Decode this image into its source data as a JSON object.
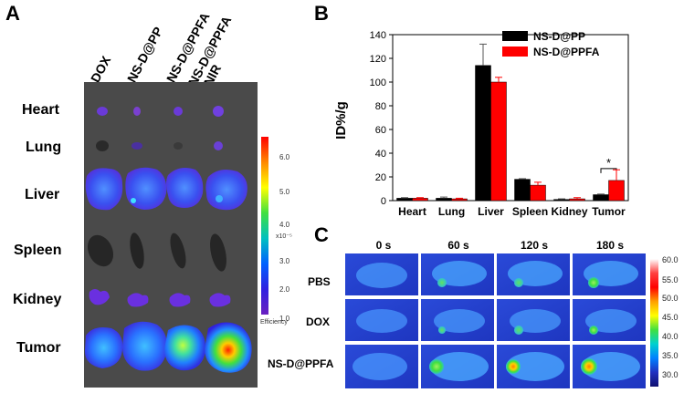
{
  "panel_a": {
    "label": "A",
    "columns": [
      "DOX",
      "NS-D@PP",
      "NS-D@PPFA",
      "NS-D@PPFA",
      "+NIR"
    ],
    "organs": [
      "Heart",
      "Lung",
      "Liver",
      "Spleen",
      "Kidney",
      "Tumor"
    ],
    "colorbar": {
      "ticks": [
        "6.0",
        "5.0",
        "4.0",
        "3.0",
        "2.0",
        "1.0"
      ],
      "exponent": "x10⁻⁵",
      "caption": "Efficiency"
    }
  },
  "panel_b": {
    "label": "B"
  },
  "panel_c": {
    "label": "C",
    "times": [
      "0 s",
      "60 s",
      "120 s",
      "180 s"
    ],
    "rows": [
      "PBS",
      "DOX",
      "NS-D@PPFA"
    ],
    "scale_ticks": [
      "60.0",
      "55.0",
      "50.0",
      "45.0",
      "40.0",
      "35.0",
      "30.0"
    ]
  },
  "chart_data": {
    "type": "bar",
    "ylabel": "ID%/g",
    "ylim": [
      0,
      140
    ],
    "yticks": [
      "0",
      "20",
      "40",
      "60",
      "80",
      "100",
      "120",
      "140"
    ],
    "categories": [
      "Heart",
      "Lung",
      "Liver",
      "Spleen",
      "Kidney",
      "Tumor"
    ],
    "series": [
      {
        "name": "NS-D@PP",
        "color": "#000000",
        "values": [
          2,
          2,
          114,
          18,
          1,
          5
        ],
        "errors": [
          0.5,
          1,
          18,
          0.5,
          0.5,
          0.5
        ]
      },
      {
        "name": "NS-D@PPFA",
        "color": "#ff0000",
        "values": [
          2,
          1.5,
          100,
          13,
          1.5,
          17
        ],
        "errors": [
          0.5,
          0.5,
          4,
          2.5,
          1,
          9
        ]
      }
    ],
    "annotation": "*",
    "legend_position": "top-right",
    "colors": {
      "series1": "#000000",
      "series2": "#ff0000"
    }
  }
}
